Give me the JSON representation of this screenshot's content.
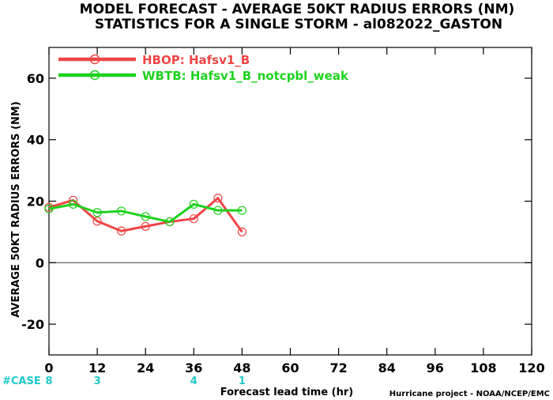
{
  "chart_data": {
    "type": "line",
    "title": "MODEL FORECAST - AVERAGE 50KT RADIUS ERRORS (NM)",
    "subtitle": "STATISTICS FOR A SINGLE STORM - al082022_GASTON",
    "xlabel": "Forecast lead time (hr)",
    "ylabel": "AVERAGE 50KT RADIUS ERRORS (NM)",
    "xlim": [
      0,
      120
    ],
    "ylim": [
      -30,
      70
    ],
    "xticks": [
      0,
      12,
      24,
      36,
      48,
      60,
      72,
      84,
      96,
      108,
      120
    ],
    "yticks": [
      -20,
      0,
      20,
      40,
      60
    ],
    "grid": false,
    "legend_position": "top-left",
    "x": [
      0,
      6,
      12,
      18,
      24,
      30,
      36,
      42,
      48
    ],
    "series": [
      {
        "name": "HBOP: Hafsv1_B",
        "color": "#f04646",
        "values": [
          18.0,
          20.3,
          13.5,
          10.3,
          11.8,
          13.3,
          14.3,
          21.0,
          10.0
        ]
      },
      {
        "name": "WBTB: Hafsv1_B_notcpbl_weak",
        "color": "#1ed21e",
        "values": [
          17.5,
          19.0,
          16.3,
          16.8,
          15.0,
          13.3,
          19.0,
          17.0,
          17.0
        ]
      }
    ],
    "case_label": "#CASE",
    "cases": [
      {
        "x": 0,
        "value": "8"
      },
      {
        "x": 12,
        "value": "3"
      },
      {
        "x": 36,
        "value": "4"
      },
      {
        "x": 48,
        "value": "1"
      }
    ],
    "credit": "Hurricane project - NOAA/NCEP/EMC"
  }
}
